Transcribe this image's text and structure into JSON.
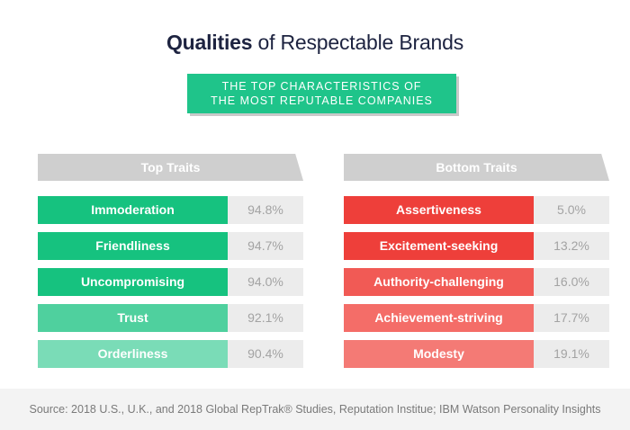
{
  "title": {
    "bold": "Qualities",
    "rest": " of Respectable Brands"
  },
  "banner": {
    "line1": "THE TOP CHARACTERISTICS OF",
    "line2": "THE MOST REPUTABLE COMPANIES"
  },
  "top_traits": {
    "header": "Top Traits",
    "items": [
      {
        "label": "Immoderation",
        "value": "94.8%",
        "color": "#16c27f"
      },
      {
        "label": "Friendliness",
        "value": "94.7%",
        "color": "#16c27f"
      },
      {
        "label": "Uncompromising",
        "value": "94.0%",
        "color": "#16c27f"
      },
      {
        "label": "Trust",
        "value": "92.1%",
        "color": "#4fd09e"
      },
      {
        "label": "Orderliness",
        "value": "90.4%",
        "color": "#7adcb7"
      }
    ]
  },
  "bottom_traits": {
    "header": "Bottom Traits",
    "items": [
      {
        "label": "Assertiveness",
        "value": "5.0%",
        "color": "#ee3f3a"
      },
      {
        "label": "Excitement-seeking",
        "value": "13.2%",
        "color": "#ee3f3a"
      },
      {
        "label": "Authority-challenging",
        "value": "16.0%",
        "color": "#f15a55"
      },
      {
        "label": "Achievement-striving",
        "value": "17.7%",
        "color": "#f46d68"
      },
      {
        "label": "Modesty",
        "value": "19.1%",
        "color": "#f47a75"
      }
    ]
  },
  "footer": "Source: 2018 U.S., U.K., and 2018 Global RepTrak® Studies, Reputation Institue; IBM Watson Personality Insights"
}
